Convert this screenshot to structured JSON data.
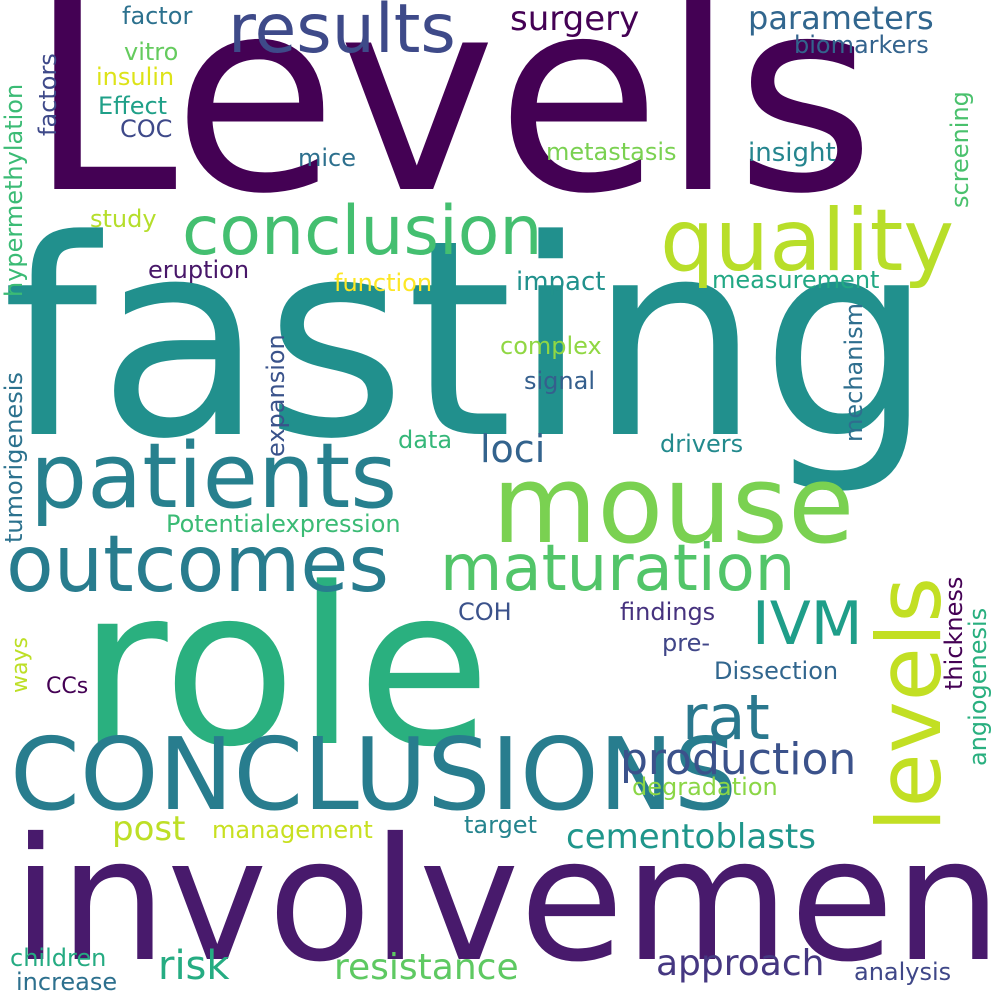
{
  "words": [
    {
      "id": "levels-capital",
      "text": "Levels",
      "color": "#440154"
    },
    {
      "id": "fasting",
      "text": "fasting",
      "color": "#21908d"
    },
    {
      "id": "role",
      "text": "role",
      "color": "#2ab07f"
    },
    {
      "id": "involvement",
      "text": "involvement",
      "color": "#481a6c"
    },
    {
      "id": "conclusions-caps",
      "text": "CONCLUSIONS",
      "color": "#287d8e"
    },
    {
      "id": "mouse",
      "text": "mouse",
      "color": "#7ad151"
    },
    {
      "id": "patients",
      "text": "patients",
      "color": "#27808e"
    },
    {
      "id": "outcomes",
      "text": "outcomes",
      "color": "#287c8e"
    },
    {
      "id": "quality",
      "text": "quality",
      "color": "#b8de29"
    },
    {
      "id": "conclusion",
      "text": "conclusion",
      "color": "#44bf70"
    },
    {
      "id": "results",
      "text": "results",
      "color": "#3e4a89"
    },
    {
      "id": "maturation",
      "text": "maturation",
      "color": "#52c569"
    },
    {
      "id": "levels-lower",
      "text": "levels",
      "color": "#c2df23"
    },
    {
      "id": "rat",
      "text": "rat",
      "color": "#2a788e"
    },
    {
      "id": "ivm",
      "text": "IVM",
      "color": "#1f9e89"
    },
    {
      "id": "production",
      "text": "production",
      "color": "#3b528b"
    },
    {
      "id": "approach",
      "text": "approach",
      "color": "#453781"
    },
    {
      "id": "resistance",
      "text": "resistance",
      "color": "#5ec962"
    },
    {
      "id": "cementoblasts",
      "text": "cementoblasts",
      "color": "#1f968b"
    },
    {
      "id": "risk",
      "text": "risk",
      "color": "#25ac82"
    },
    {
      "id": "post",
      "text": "post",
      "color": "#bddf26"
    },
    {
      "id": "surgery",
      "text": "surgery",
      "color": "#440154"
    },
    {
      "id": "parameters",
      "text": "parameters",
      "color": "#31668e"
    },
    {
      "id": "loci",
      "text": "loci",
      "color": "#33638d"
    },
    {
      "id": "tumorigenesis",
      "text": "tumorigenesis",
      "color": "#2c728e"
    },
    {
      "id": "hypermethylation",
      "text": "hypermethylation",
      "color": "#3bbb75"
    },
    {
      "id": "expansion",
      "text": "expansion",
      "color": "#3a538b"
    },
    {
      "id": "mechanism",
      "text": "mechanism",
      "color": "#2e6e8e"
    },
    {
      "id": "thickness",
      "text": "thickness",
      "color": "#440154"
    },
    {
      "id": "angiogenesis",
      "text": "angiogenesis",
      "color": "#29af7f"
    },
    {
      "id": "screening",
      "text": "screening",
      "color": "#4ac16d"
    },
    {
      "id": "factors",
      "text": "factors",
      "color": "#3e4989"
    },
    {
      "id": "ways",
      "text": "ways",
      "color": "#bddf26"
    },
    {
      "id": "factor",
      "text": "factor",
      "color": "#2c718e"
    },
    {
      "id": "vitro",
      "text": "vitro",
      "color": "#65cb5e"
    },
    {
      "id": "insulin",
      "text": "insulin",
      "color": "#dde318"
    },
    {
      "id": "effect",
      "text": "Effect",
      "color": "#1fa088"
    },
    {
      "id": "coc",
      "text": "COC",
      "color": "#3e4989"
    },
    {
      "id": "mice",
      "text": "mice",
      "color": "#2d708e"
    },
    {
      "id": "metastasis",
      "text": "metastasis",
      "color": "#7ad151"
    },
    {
      "id": "insight",
      "text": "insight",
      "color": "#25858e"
    },
    {
      "id": "biomarkers",
      "text": "biomarkers",
      "color": "#33638d"
    },
    {
      "id": "study",
      "text": "study",
      "color": "#b5de2b"
    },
    {
      "id": "eruption",
      "text": "eruption",
      "color": "#481769"
    },
    {
      "id": "function",
      "text": "function",
      "color": "#fde725"
    },
    {
      "id": "impact",
      "text": "impact",
      "color": "#21918c"
    },
    {
      "id": "measurement",
      "text": "measurement",
      "color": "#22a884"
    },
    {
      "id": "complex",
      "text": "complex",
      "color": "#90d743"
    },
    {
      "id": "signal",
      "text": "signal",
      "color": "#355f8d"
    },
    {
      "id": "data",
      "text": "data",
      "color": "#35b779"
    },
    {
      "id": "drivers",
      "text": "drivers",
      "color": "#238a8d"
    },
    {
      "id": "potentialexpression",
      "text": "Potentialexpression",
      "color": "#3bbb75"
    },
    {
      "id": "coh",
      "text": "COH",
      "color": "#3b528b"
    },
    {
      "id": "findings",
      "text": "findings",
      "color": "#46327e"
    },
    {
      "id": "pre",
      "text": "pre-",
      "color": "#404688"
    },
    {
      "id": "dissection",
      "text": "Dissection",
      "color": "#31668e"
    },
    {
      "id": "ccs",
      "text": "CCs",
      "color": "#440154"
    },
    {
      "id": "degradation",
      "text": "degradation",
      "color": "#8bd646"
    },
    {
      "id": "management",
      "text": "management",
      "color": "#c8e020"
    },
    {
      "id": "target",
      "text": "target",
      "color": "#25848e"
    },
    {
      "id": "children",
      "text": "children",
      "color": "#25ab82"
    },
    {
      "id": "increase",
      "text": "increase",
      "color": "#2d708e"
    },
    {
      "id": "analysis",
      "text": "analysis",
      "color": "#3f4788"
    }
  ]
}
